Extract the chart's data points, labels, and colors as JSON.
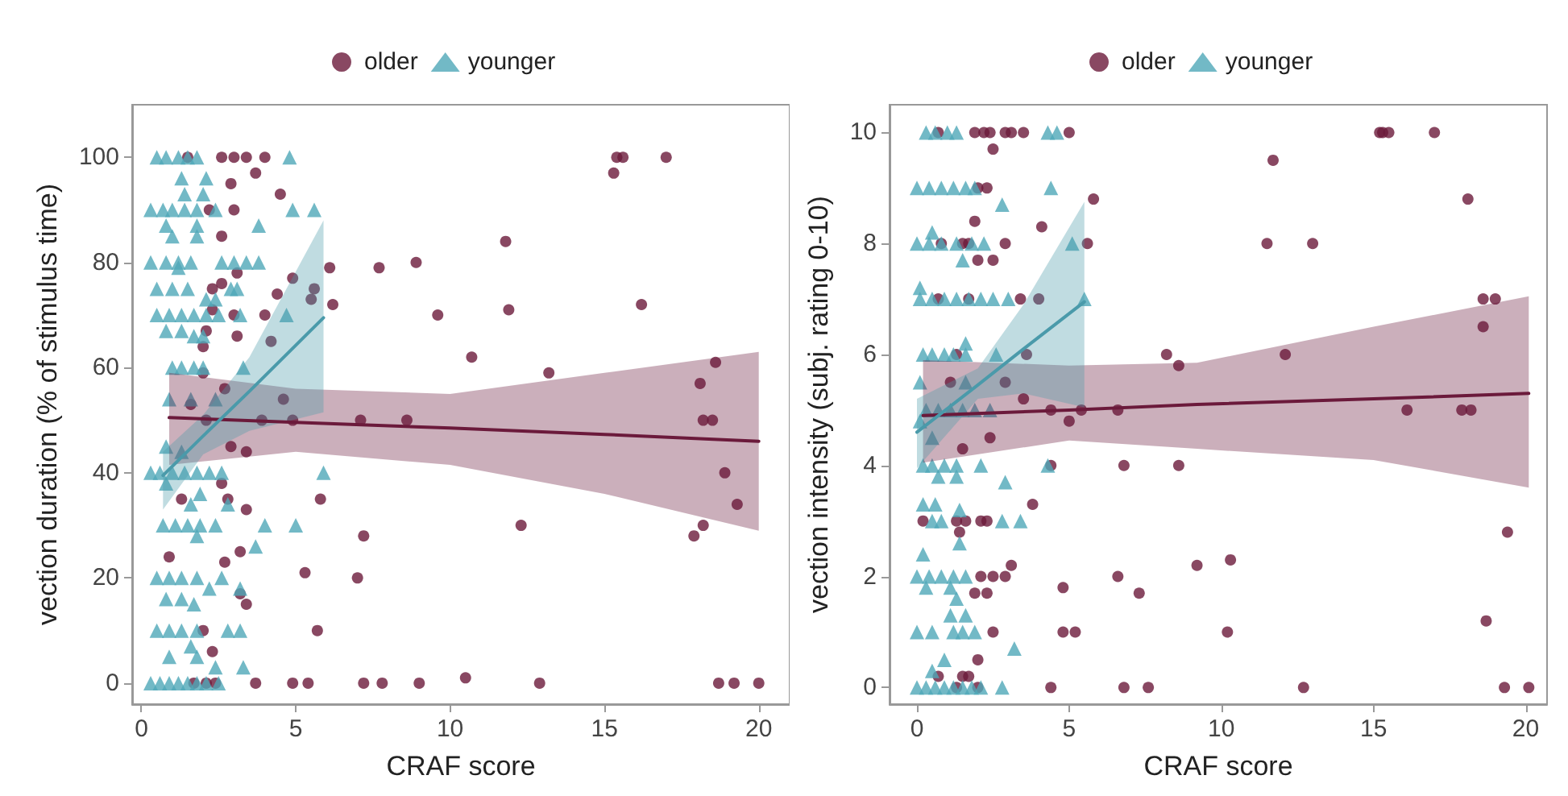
{
  "chart_data": [
    {
      "type": "scatter",
      "xlabel": "CRAF score",
      "ylabel": "vection duration (% of stimulus time)",
      "xlim": [
        -0.3,
        21
      ],
      "xticks": [
        0,
        5,
        10,
        15,
        20
      ],
      "ylim": [
        -4,
        110
      ],
      "yticks": [
        0,
        20,
        40,
        60,
        80,
        100
      ],
      "legend": "top",
      "grid": false,
      "series": [
        {
          "name": "older",
          "marker": "circle",
          "color": "#6b1a3b",
          "x": [
            1.5,
            2.6,
            3.0,
            3.4,
            4.0,
            3.7,
            2.9,
            4.5,
            2.2,
            3.0,
            2.6,
            6.1,
            7.7,
            8.9,
            3.1,
            2.6,
            2.3,
            4.4,
            4.9,
            5.6,
            5.5,
            6.2,
            2.3,
            3.0,
            4.0,
            9.6,
            2.1,
            3.1,
            4.2,
            2.0,
            10.7,
            2.0,
            2.7,
            4.6,
            1.6,
            2.1,
            3.9,
            4.9,
            7.1,
            8.6,
            2.9,
            3.4,
            2.6,
            1.3,
            2.8,
            3.4,
            5.8,
            7.2,
            0.9,
            3.2,
            2.7,
            5.3,
            7.0,
            3.2,
            3.4,
            2.0,
            5.7,
            2.3,
            1.7,
            2.1,
            2.4,
            3.7,
            4.9,
            5.4,
            7.2,
            7.8,
            9.0,
            10.5,
            15.4,
            15.6,
            17.0,
            15.3,
            11.8,
            11.9,
            16.2,
            13.2,
            18.1,
            18.6,
            18.2,
            18.5,
            18.9,
            19.3,
            12.3,
            18.2,
            17.9,
            12.9,
            18.7,
            19.2,
            20.0
          ],
          "values": [
            100,
            100,
            100,
            100,
            100,
            97,
            95,
            93,
            90,
            90,
            85,
            79,
            79,
            80,
            78,
            76,
            75,
            74,
            77,
            75,
            73,
            72,
            71,
            70,
            70,
            70,
            67,
            66,
            65,
            64,
            62,
            59,
            56,
            54,
            53,
            50,
            50,
            50,
            50,
            50,
            45,
            44,
            38,
            35,
            35,
            33,
            35,
            28,
            24,
            25,
            23,
            21,
            20,
            17,
            15,
            10,
            10,
            6,
            0,
            0,
            0,
            0,
            0,
            0,
            0,
            0,
            0,
            1,
            100,
            100,
            100,
            97,
            84,
            71,
            72,
            59,
            57,
            61,
            50,
            50,
            40,
            34,
            30,
            30,
            28,
            0,
            0,
            0,
            0
          ]
        },
        {
          "name": "younger",
          "marker": "triangle",
          "color": "#4fa8b8",
          "x": [
            0.5,
            0.8,
            1.2,
            1.5,
            1.8,
            4.8,
            1.3,
            2.1,
            1.4,
            2.0,
            0.3,
            0.7,
            1.0,
            1.4,
            1.8,
            2.4,
            4.9,
            5.6,
            0.8,
            1.8,
            3.8,
            1.0,
            1.8,
            0.3,
            0.8,
            1.2,
            1.6,
            2.6,
            3.0,
            3.4,
            3.8,
            1.2,
            0.5,
            1.0,
            1.5,
            2.9,
            3.1,
            2.1,
            2.4,
            0.5,
            0.9,
            1.3,
            1.7,
            2.1,
            2.5,
            3.2,
            4.7,
            0.8,
            1.3,
            1.7,
            2.0,
            1.0,
            1.3,
            1.7,
            2.0,
            3.3,
            0.9,
            1.6,
            2.4,
            0.8,
            1.3,
            0.3,
            0.6,
            1.0,
            1.4,
            1.8,
            2.2,
            2.6,
            5.9,
            0.8,
            1.9,
            1.6,
            2.8,
            0.7,
            1.1,
            1.5,
            1.9,
            2.4,
            4.0,
            5.0,
            1.8,
            3.7,
            0.5,
            0.9,
            1.3,
            1.8,
            2.6,
            2.2,
            3.2,
            0.8,
            1.3,
            1.7,
            0.5,
            0.9,
            1.3,
            1.8,
            2.8,
            3.2,
            1.6,
            0.9,
            1.8,
            2.4,
            3.3,
            0.3,
            0.6,
            0.9,
            1.2,
            1.5,
            1.8,
            2.1,
            2.5
          ],
          "values": [
            100,
            100,
            100,
            100,
            100,
            100,
            96,
            96,
            93,
            93,
            90,
            90,
            90,
            90,
            90,
            90,
            90,
            90,
            87,
            87,
            87,
            85,
            85,
            80,
            80,
            80,
            80,
            80,
            80,
            80,
            80,
            79,
            75,
            75,
            75,
            75,
            75,
            73,
            73,
            70,
            70,
            70,
            70,
            70,
            70,
            70,
            70,
            67,
            67,
            66,
            66,
            60,
            60,
            60,
            60,
            60,
            54,
            54,
            54,
            45,
            44,
            40,
            40,
            40,
            40,
            40,
            40,
            40,
            40,
            38,
            36,
            34,
            34,
            30,
            30,
            30,
            30,
            30,
            30,
            30,
            28,
            26,
            20,
            20,
            20,
            20,
            20,
            18,
            18,
            16,
            16,
            15,
            10,
            10,
            10,
            10,
            10,
            10,
            7,
            5,
            5,
            3,
            3,
            0,
            0,
            0,
            0,
            0,
            0,
            0,
            0
          ]
        },
        {
          "type": "line",
          "marker": "none",
          "color": "#6b1a3b",
          "x": [
            0.9,
            5,
            10,
            15,
            20
          ],
          "values": [
            50.5,
            49.6,
            48.5,
            47.3,
            46
          ],
          "lower": [
            41.5,
            44,
            41.5,
            36,
            29
          ],
          "upper": [
            59,
            56,
            55,
            59,
            63
          ]
        },
        {
          "type": "line",
          "marker": "none",
          "color": "#4a9aaa",
          "x": [
            0.7,
            2,
            3.5,
            5.9
          ],
          "values": [
            39.5,
            47,
            55.5,
            69.5
          ],
          "lower": [
            33,
            43.5,
            48,
            51.5
          ],
          "upper": [
            44,
            51,
            62,
            88
          ]
        }
      ]
    },
    {
      "type": "scatter",
      "xlabel": "CRAF score",
      "ylabel": "vection intensity (subj. rating 0-10)",
      "xlim": [
        -0.9,
        20.7
      ],
      "xticks": [
        0,
        5,
        10,
        15,
        20
      ],
      "ylim": [
        -0.3,
        10.5
      ],
      "yticks": [
        0,
        2,
        4,
        6,
        8,
        10
      ],
      "legend": "top",
      "grid": false,
      "series": [
        {
          "name": "older",
          "marker": "circle",
          "color": "#6b1a3b",
          "x": [
            0.7,
            1.9,
            2.2,
            2.4,
            2.9,
            3.1,
            3.5,
            5.0,
            15.2,
            15.3,
            15.5,
            17.0,
            2.5,
            11.7,
            2.0,
            2.3,
            5.8,
            18.1,
            1.9,
            4.1,
            0.8,
            1.5,
            1.7,
            2.9,
            5.6,
            11.5,
            13.0,
            2.0,
            2.5,
            0.7,
            1.7,
            3.4,
            4.0,
            18.6,
            19.0,
            18.6,
            1.3,
            3.6,
            8.2,
            12.1,
            8.6,
            1.1,
            2.9,
            3.5,
            4.4,
            5.4,
            6.6,
            16.1,
            17.9,
            18.2,
            5.0,
            2.4,
            1.5,
            4.4,
            6.8,
            8.6,
            3.8,
            0.2,
            1.3,
            1.6,
            2.1,
            2.3,
            1.4,
            19.4,
            10.3,
            3.1,
            9.2,
            2.1,
            2.5,
            2.9,
            6.6,
            4.8,
            7.3,
            1.9,
            2.3,
            2.5,
            4.8,
            5.2,
            10.2,
            18.7,
            2.0,
            0.7,
            1.5,
            1.7,
            1.3,
            2.0,
            4.4,
            6.8,
            7.6,
            12.7,
            19.3,
            20.1
          ],
          "values": [
            10,
            10,
            10,
            10,
            10,
            10,
            10,
            10,
            10,
            10,
            10,
            10,
            9.7,
            9.5,
            9.0,
            9.0,
            8.8,
            8.8,
            8.4,
            8.3,
            8.0,
            8.0,
            8.0,
            8.0,
            8.0,
            8.0,
            8.0,
            7.7,
            7.7,
            7.0,
            7.0,
            7.0,
            7.0,
            7.0,
            7.0,
            6.5,
            6.0,
            6.0,
            6.0,
            6.0,
            5.8,
            5.5,
            5.5,
            5.2,
            5.0,
            5.0,
            5.0,
            5.0,
            5.0,
            5.0,
            4.8,
            4.5,
            4.3,
            4.0,
            4.0,
            4.0,
            3.3,
            3.0,
            3.0,
            3.0,
            3.0,
            3.0,
            2.8,
            2.8,
            2.3,
            2.2,
            2.2,
            2.0,
            2.0,
            2.0,
            2.0,
            1.8,
            1.7,
            1.7,
            1.7,
            1.0,
            1.0,
            1.0,
            1.0,
            1.2,
            0.5,
            0.2,
            0.2,
            0.2,
            0,
            0,
            0,
            0,
            0,
            0,
            0,
            0
          ]
        },
        {
          "name": "younger",
          "marker": "triangle",
          "color": "#4fa8b8",
          "x": [
            0.3,
            0.6,
            1.0,
            1.3,
            4.3,
            4.6,
            0.0,
            0.4,
            0.8,
            1.2,
            1.6,
            1.9,
            4.4,
            2.8,
            0.5,
            0.0,
            0.4,
            0.8,
            1.3,
            1.8,
            2.2,
            5.1,
            1.5,
            0.1,
            0.1,
            0.5,
            0.9,
            1.3,
            1.7,
            2.1,
            2.5,
            3.0,
            5.5,
            1.6,
            0.2,
            0.5,
            0.9,
            1.2,
            1.6,
            2.6,
            0.1,
            1.6,
            0.3,
            0.7,
            1.1,
            1.5,
            1.9,
            2.4,
            0.1,
            0.5,
            0.2,
            0.5,
            0.9,
            1.3,
            2.1,
            4.3,
            0.7,
            1.3,
            2.9,
            0.2,
            0.6,
            1.4,
            0.5,
            0.8,
            2.8,
            3.4,
            1.4,
            0.2,
            0.0,
            0.4,
            0.8,
            1.2,
            1.6,
            0.3,
            1.1,
            1.3,
            1.1,
            1.6,
            0.0,
            0.5,
            1.2,
            1.5,
            1.9,
            3.2,
            0.9,
            0.5,
            0.0,
            0.3,
            0.6,
            0.9,
            1.2,
            1.5,
            1.8,
            2.1,
            2.8
          ],
          "values": [
            10,
            10,
            10,
            10,
            10,
            10,
            9.0,
            9.0,
            9.0,
            9.0,
            9.0,
            9.0,
            9.0,
            8.7,
            8.2,
            8.0,
            8.0,
            8.0,
            8.0,
            8.0,
            8.0,
            8.0,
            7.7,
            7.2,
            7.0,
            7.0,
            7.0,
            7.0,
            7.0,
            7.0,
            7.0,
            7.0,
            7.0,
            6.2,
            6.0,
            6.0,
            6.0,
            6.0,
            6.0,
            6.0,
            5.5,
            5.5,
            5.0,
            5.0,
            5.0,
            5.0,
            5.0,
            5.0,
            4.8,
            4.5,
            4.0,
            4.0,
            4.0,
            4.0,
            4.0,
            4.0,
            3.8,
            3.8,
            3.7,
            3.3,
            3.3,
            3.2,
            3.0,
            3.0,
            3.0,
            3.0,
            2.6,
            2.4,
            2.0,
            2.0,
            2.0,
            2.0,
            2.0,
            1.8,
            1.8,
            1.6,
            1.3,
            1.3,
            1.0,
            1.0,
            1.0,
            1.0,
            1.0,
            0.7,
            0.5,
            0.3,
            0,
            0,
            0,
            0,
            0,
            0,
            0,
            0,
            0
          ]
        },
        {
          "type": "line",
          "marker": "none",
          "color": "#6b1a3b",
          "x": [
            0.2,
            5,
            9.2,
            15,
            20.1
          ],
          "values": [
            4.9,
            5.0,
            5.1,
            5.2,
            5.3
          ],
          "lower": [
            4.05,
            4.45,
            4.3,
            4.1,
            3.6
          ],
          "upper": [
            5.9,
            5.8,
            5.85,
            6.5,
            7.05
          ]
        },
        {
          "type": "line",
          "marker": "none",
          "color": "#4a9aaa",
          "x": [
            0,
            2,
            3.5,
            5.5
          ],
          "values": [
            4.6,
            5.45,
            6.1,
            6.95
          ],
          "lower": [
            3.95,
            5.2,
            5.3,
            5.05
          ],
          "upper": [
            5.2,
            5.75,
            6.9,
            8.75
          ]
        }
      ]
    }
  ]
}
